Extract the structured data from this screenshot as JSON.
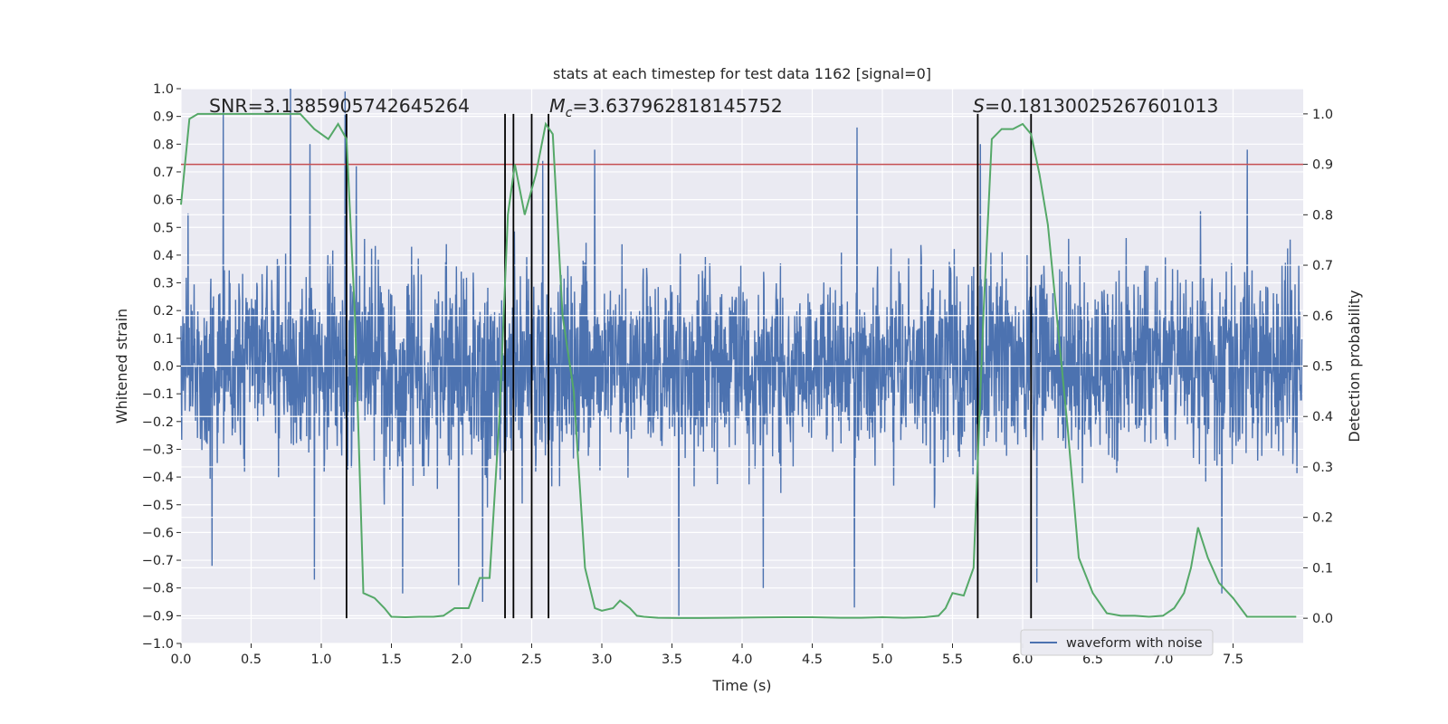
{
  "chart_data": {
    "type": "line",
    "title": "stats at each timestep for test data 1162 [signal=0]",
    "xlabel": "Time (s)",
    "ylabel_left": "Whitened strain",
    "ylabel_right": "Detection probability",
    "xlim": [
      0.0,
      8.0
    ],
    "ylim_left": [
      -1.0,
      1.0
    ],
    "ylim_right": [
      -0.05,
      1.05
    ],
    "xticks": [
      "0.0",
      "0.5",
      "1.0",
      "1.5",
      "2.0",
      "2.5",
      "3.0",
      "3.5",
      "4.0",
      "4.5",
      "5.0",
      "5.5",
      "6.0",
      "6.5",
      "7.0",
      "7.5"
    ],
    "yticks_left": [
      "1.0",
      "0.9",
      "0.8",
      "0.7",
      "0.6",
      "0.5",
      "0.4",
      "0.3",
      "0.2",
      "0.1",
      "0.0",
      "−0.1",
      "−0.2",
      "−0.3",
      "−0.4",
      "−0.5",
      "−0.6",
      "−0.7",
      "−0.8",
      "−0.9",
      "−1.0"
    ],
    "yticks_right": [
      "1.0",
      "0.9",
      "0.8",
      "0.7",
      "0.6",
      "0.5",
      "0.4",
      "0.3",
      "0.2",
      "0.1",
      "0.0"
    ],
    "annotations": {
      "snr": "SNR=3.1385905742645264",
      "mc_symbol": "M",
      "mc_sub": "c",
      "mc_value": "=3.637962818145752",
      "s_symbol": "S",
      "s_value": "=0.18130025267601013"
    },
    "threshold": {
      "value": 0.9,
      "axis": "right",
      "color": "#c44e52"
    },
    "vertical_markers_x": [
      1.18,
      2.31,
      2.37,
      2.5,
      2.62,
      5.68,
      6.06
    ],
    "vertical_markers_range_right": [
      0.0,
      1.0
    ],
    "series": [
      {
        "name": "waveform with noise",
        "axis": "left",
        "color": "#4c72b0",
        "style": "dense noise, |strain| roughly 0.3-0.5 typical, peaks near ±1",
        "peaks": [
          {
            "x": 0.05,
            "y": 0.55
          },
          {
            "x": 0.22,
            "y": 0.84
          },
          {
            "x": 0.3,
            "y": 0.92
          },
          {
            "x": 0.78,
            "y": 1.0
          },
          {
            "x": 0.92,
            "y": 0.8
          },
          {
            "x": 1.17,
            "y": 0.99
          },
          {
            "x": 1.25,
            "y": 0.72
          },
          {
            "x": 2.5,
            "y": 0.8
          },
          {
            "x": 2.58,
            "y": 0.74
          },
          {
            "x": 2.95,
            "y": 0.78
          },
          {
            "x": 4.82,
            "y": 0.86
          },
          {
            "x": 5.7,
            "y": 0.8
          },
          {
            "x": 7.42,
            "y": 0.86
          },
          {
            "x": 7.6,
            "y": 0.78
          },
          {
            "x": 0.22,
            "y": -0.72
          },
          {
            "x": 0.95,
            "y": -0.77
          },
          {
            "x": 1.58,
            "y": -0.82
          },
          {
            "x": 1.98,
            "y": -0.79
          },
          {
            "x": 2.15,
            "y": -0.85
          },
          {
            "x": 3.55,
            "y": -0.9
          },
          {
            "x": 4.15,
            "y": -0.8
          },
          {
            "x": 4.8,
            "y": -0.87
          },
          {
            "x": 6.1,
            "y": -0.78
          },
          {
            "x": 7.42,
            "y": -0.82
          }
        ],
        "envelope": [
          {
            "x": 0.0,
            "y": 0.36
          },
          {
            "x": 0.5,
            "y": 0.4
          },
          {
            "x": 1.0,
            "y": 0.4
          },
          {
            "x": 1.5,
            "y": 0.42
          },
          {
            "x": 2.0,
            "y": 0.44
          },
          {
            "x": 2.4,
            "y": 0.47
          },
          {
            "x": 3.0,
            "y": 0.38
          },
          {
            "x": 3.5,
            "y": 0.38
          },
          {
            "x": 4.0,
            "y": 0.39
          },
          {
            "x": 4.5,
            "y": 0.38
          },
          {
            "x": 5.0,
            "y": 0.38
          },
          {
            "x": 5.5,
            "y": 0.4
          },
          {
            "x": 6.0,
            "y": 0.43
          },
          {
            "x": 6.5,
            "y": 0.4
          },
          {
            "x": 7.0,
            "y": 0.39
          },
          {
            "x": 7.5,
            "y": 0.41
          },
          {
            "x": 8.0,
            "y": 0.4
          }
        ]
      },
      {
        "name": "detection probability",
        "axis": "right",
        "color": "#55a868",
        "x": [
          0.0,
          0.06,
          0.12,
          0.2,
          0.3,
          0.45,
          0.6,
          0.75,
          0.85,
          0.95,
          1.05,
          1.12,
          1.18,
          1.24,
          1.3,
          1.38,
          1.45,
          1.5,
          1.6,
          1.7,
          1.8,
          1.87,
          1.95,
          2.05,
          2.13,
          2.2,
          2.27,
          2.33,
          2.38,
          2.45,
          2.53,
          2.6,
          2.65,
          2.72,
          2.8,
          2.88,
          2.95,
          3.0,
          3.08,
          3.13,
          3.2,
          3.25,
          3.3,
          3.4,
          3.55,
          3.7,
          3.9,
          4.1,
          4.3,
          4.5,
          4.7,
          4.85,
          5.0,
          5.15,
          5.3,
          5.4,
          5.45,
          5.5,
          5.58,
          5.65,
          5.72,
          5.78,
          5.85,
          5.93,
          6.0,
          6.06,
          6.12,
          6.18,
          6.25,
          6.32,
          6.4,
          6.5,
          6.6,
          6.7,
          6.8,
          6.9,
          7.0,
          7.08,
          7.15,
          7.2,
          7.25,
          7.32,
          7.4,
          7.5,
          7.6,
          7.75,
          7.95
        ],
        "y": [
          0.82,
          0.99,
          1.0,
          1.0,
          1.0,
          1.0,
          1.0,
          1.0,
          1.0,
          0.97,
          0.95,
          0.98,
          0.95,
          0.6,
          0.05,
          0.04,
          0.02,
          0.003,
          0.002,
          0.003,
          0.003,
          0.005,
          0.02,
          0.02,
          0.08,
          0.08,
          0.4,
          0.8,
          0.9,
          0.8,
          0.88,
          0.98,
          0.96,
          0.6,
          0.45,
          0.1,
          0.02,
          0.015,
          0.02,
          0.035,
          0.02,
          0.005,
          0.003,
          0.001,
          0.0005,
          0.0005,
          0.001,
          0.0015,
          0.002,
          0.002,
          0.001,
          0.001,
          0.002,
          0.001,
          0.002,
          0.005,
          0.02,
          0.05,
          0.045,
          0.1,
          0.6,
          0.95,
          0.97,
          0.97,
          0.98,
          0.96,
          0.88,
          0.78,
          0.58,
          0.38,
          0.12,
          0.05,
          0.01,
          0.005,
          0.005,
          0.003,
          0.005,
          0.02,
          0.05,
          0.1,
          0.18,
          0.12,
          0.07,
          0.04,
          0.003,
          0.003,
          0.003
        ]
      }
    ],
    "legend": {
      "label": "waveform with noise",
      "placement": "lower-right"
    },
    "grid": true
  }
}
